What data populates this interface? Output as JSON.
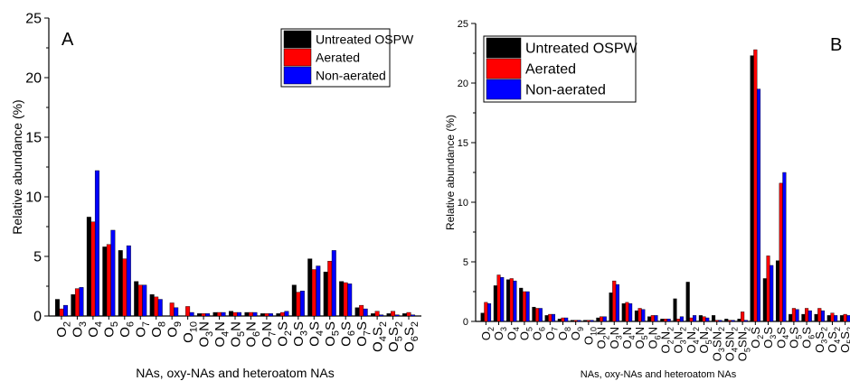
{
  "colors": {
    "untreated": "#000000",
    "aerated": "#ff0000",
    "nonaerated": "#0000ff"
  },
  "chart_data": [
    {
      "type": "bar",
      "panel_label": "A",
      "xlabel": "NAs, oxy-NAs and heteroatom NAs",
      "ylabel": "Relative abundance (%)",
      "ylim": [
        0,
        25
      ],
      "yticks": [
        "0",
        "5",
        "10",
        "15",
        "20",
        "25"
      ],
      "legend_position": "top-right",
      "categories": [
        {
          "base": "O",
          "sub": "2",
          "tail": ""
        },
        {
          "base": "O",
          "sub": "3",
          "tail": ""
        },
        {
          "base": "O",
          "sub": "4",
          "tail": ""
        },
        {
          "base": "O",
          "sub": "5",
          "tail": ""
        },
        {
          "base": "O",
          "sub": "6",
          "tail": ""
        },
        {
          "base": "O",
          "sub": "7",
          "tail": ""
        },
        {
          "base": "O",
          "sub": "8",
          "tail": ""
        },
        {
          "base": "O",
          "sub": "9",
          "tail": ""
        },
        {
          "base": "O",
          "sub": "10",
          "tail": ""
        },
        {
          "base": "O",
          "sub": "3",
          "tail": "N"
        },
        {
          "base": "O",
          "sub": "4",
          "tail": "N"
        },
        {
          "base": "O",
          "sub": "5",
          "tail": "N"
        },
        {
          "base": "O",
          "sub": "6",
          "tail": "N"
        },
        {
          "base": "O",
          "sub": "7",
          "tail": "N"
        },
        {
          "base": "O",
          "sub": "2",
          "tail": "S"
        },
        {
          "base": "O",
          "sub": "3",
          "tail": "S"
        },
        {
          "base": "O",
          "sub": "4",
          "tail": "S"
        },
        {
          "base": "O",
          "sub": "5",
          "tail": "S"
        },
        {
          "base": "O",
          "sub": "6",
          "tail": "S"
        },
        {
          "base": "O",
          "sub": "7",
          "tail": "S"
        },
        {
          "base": "O",
          "sub": "4",
          "tail": "S",
          "sub2": "2"
        },
        {
          "base": "O",
          "sub": "5",
          "tail": "S",
          "sub2": "2"
        },
        {
          "base": "O",
          "sub": "6",
          "tail": "S",
          "sub2": "2"
        }
      ],
      "series": [
        {
          "name": "Untreated OSPW",
          "color": "#000000",
          "values": [
            1.4,
            1.8,
            8.3,
            5.8,
            5.5,
            2.9,
            1.8,
            0,
            0,
            0.2,
            0.3,
            0.4,
            0.3,
            0.2,
            0.2,
            2.6,
            4.8,
            3.7,
            2.9,
            0.7,
            0.2,
            0.2,
            0.2
          ]
        },
        {
          "name": "Aerated",
          "color": "#ff0000",
          "values": [
            0.6,
            2.3,
            7.9,
            6.0,
            4.8,
            2.6,
            1.6,
            1.1,
            0.8,
            0.2,
            0.3,
            0.3,
            0.3,
            0.2,
            0.3,
            2.0,
            3.9,
            4.6,
            2.8,
            0.9,
            0.4,
            0.4,
            0.3
          ]
        },
        {
          "name": "Non-aerated",
          "color": "#0000ff",
          "values": [
            0.9,
            2.4,
            12.2,
            7.2,
            5.9,
            2.6,
            1.4,
            0.7,
            0.3,
            0.2,
            0.3,
            0.3,
            0.3,
            0.2,
            0.4,
            2.1,
            4.2,
            5.5,
            2.7,
            0.6,
            0.1,
            0.1,
            0.1
          ]
        }
      ]
    },
    {
      "type": "bar",
      "panel_label": "B",
      "xlabel": "NAs, oxy-NAs and heteroatom NAs",
      "ylabel": "Relative abundance (%)",
      "ylim": [
        0,
        25
      ],
      "yticks": [
        "0",
        "5",
        "10",
        "15",
        "20",
        "25"
      ],
      "legend_position": "top-left",
      "categories": [
        {
          "base": "O",
          "sub": "2",
          "tail": ""
        },
        {
          "base": "O",
          "sub": "3",
          "tail": ""
        },
        {
          "base": "O",
          "sub": "4",
          "tail": ""
        },
        {
          "base": "O",
          "sub": "5",
          "tail": ""
        },
        {
          "base": "O",
          "sub": "6",
          "tail": ""
        },
        {
          "base": "O",
          "sub": "7",
          "tail": ""
        },
        {
          "base": "O",
          "sub": "8",
          "tail": ""
        },
        {
          "base": "O",
          "sub": "9",
          "tail": ""
        },
        {
          "base": "O",
          "sub": "10",
          "tail": ""
        },
        {
          "base": "O",
          "sub": "2",
          "tail": "N"
        },
        {
          "base": "O",
          "sub": "3",
          "tail": "N"
        },
        {
          "base": "O",
          "sub": "4",
          "tail": "N"
        },
        {
          "base": "O",
          "sub": "5",
          "tail": "N"
        },
        {
          "base": "O",
          "sub": "6",
          "tail": "N"
        },
        {
          "base": "O",
          "sub": "2",
          "tail": "N",
          "sub2": "2"
        },
        {
          "base": "O",
          "sub": "3",
          "tail": "N",
          "sub2": "2"
        },
        {
          "base": "O",
          "sub": "4",
          "tail": "N",
          "sub2": "2"
        },
        {
          "base": "O",
          "sub": "5",
          "tail": "N",
          "sub2": "2"
        },
        {
          "base": "O",
          "sub": "3",
          "tail": "SN",
          "sub2": "2"
        },
        {
          "base": "O",
          "sub": "4",
          "tail": "SN",
          "sub2": "2"
        },
        {
          "base": "O",
          "sub": "5",
          "tail": "SN",
          "sub2": "2"
        },
        {
          "base": "O",
          "sub": "2",
          "tail": "S"
        },
        {
          "base": "O",
          "sub": "3",
          "tail": "S"
        },
        {
          "base": "O",
          "sub": "4",
          "tail": "S"
        },
        {
          "base": "O",
          "sub": "5",
          "tail": "S"
        },
        {
          "base": "O",
          "sub": "6",
          "tail": "S"
        },
        {
          "base": "O",
          "sub": "3",
          "tail": "S",
          "sub2": "2"
        },
        {
          "base": "O",
          "sub": "4",
          "tail": "S",
          "sub2": "2"
        },
        {
          "base": "O",
          "sub": "5",
          "tail": "S",
          "sub2": "2"
        }
      ],
      "series": [
        {
          "name": "Untreated OSPW",
          "color": "#000000",
          "values": [
            0.7,
            3.0,
            3.5,
            2.8,
            1.2,
            0.5,
            0.2,
            0.1,
            0.1,
            0.3,
            2.4,
            1.5,
            0.9,
            0.4,
            0.2,
            1.9,
            3.3,
            0.5,
            0.5,
            0.2,
            0.2,
            22.3,
            3.6,
            5.1,
            0.6,
            0.6,
            0.6,
            0.5,
            0.5
          ]
        },
        {
          "name": "Aerated",
          "color": "#ff0000",
          "values": [
            1.6,
            3.9,
            3.6,
            2.5,
            1.1,
            0.6,
            0.3,
            0.1,
            0.1,
            0.4,
            3.4,
            1.6,
            1.1,
            0.5,
            0.2,
            0.2,
            0.3,
            0.4,
            0.1,
            0.1,
            0.8,
            22.8,
            5.5,
            11.6,
            1.1,
            1.1,
            1.1,
            0.7,
            0.6
          ]
        },
        {
          "name": "Non-aerated",
          "color": "#0000ff",
          "values": [
            1.5,
            3.7,
            3.4,
            2.5,
            1.1,
            0.6,
            0.3,
            0.1,
            0.1,
            0.4,
            3.1,
            1.5,
            1.0,
            0.5,
            0.2,
            0.4,
            0.5,
            0.3,
            0.1,
            0.1,
            0.1,
            19.5,
            4.7,
            12.5,
            1.0,
            0.9,
            0.9,
            0.5,
            0.5
          ]
        }
      ]
    }
  ]
}
